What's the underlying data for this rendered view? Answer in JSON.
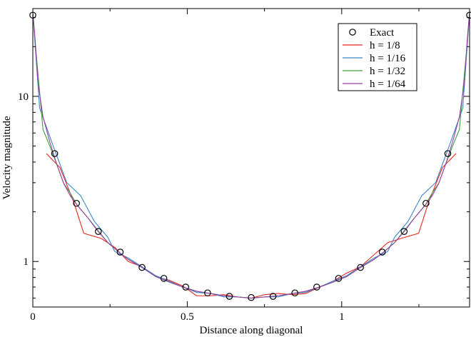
{
  "chart_data": {
    "type": "line",
    "xlabel": "Distance along diagonal",
    "ylabel": "Velocity magnitude",
    "xlim": [
      0,
      1.414
    ],
    "ylim": [
      0.53,
      34
    ],
    "yscale": "log",
    "grid": false,
    "legend_position": "top-right",
    "x_ticks": [
      {
        "value": 0,
        "label": "0"
      },
      {
        "value": 0.5,
        "label": "0.5"
      },
      {
        "value": 1,
        "label": "1"
      }
    ],
    "y_ticks": [
      {
        "value": 1,
        "label": "1"
      },
      {
        "value": 10,
        "label": "10"
      }
    ],
    "series": [
      {
        "name": "Exact",
        "style": "markers",
        "marker": "circle",
        "color": "#000000",
        "points": [
          [
            0.0,
            31
          ],
          [
            0.0707,
            4.5
          ],
          [
            0.1414,
            2.25
          ],
          [
            0.2121,
            1.52
          ],
          [
            0.2828,
            1.14
          ],
          [
            0.3536,
            0.92
          ],
          [
            0.4243,
            0.79
          ],
          [
            0.495,
            0.7
          ],
          [
            0.5657,
            0.645
          ],
          [
            0.6364,
            0.615
          ],
          [
            0.7071,
            0.605
          ],
          [
            0.7778,
            0.615
          ],
          [
            0.8485,
            0.645
          ],
          [
            0.9192,
            0.7
          ],
          [
            0.9899,
            0.79
          ],
          [
            1.0607,
            0.92
          ],
          [
            1.1314,
            1.14
          ],
          [
            1.2021,
            1.52
          ],
          [
            1.2728,
            2.25
          ],
          [
            1.3435,
            4.5
          ],
          [
            1.4142,
            31
          ]
        ]
      },
      {
        "name": "h = 1/8",
        "style": "line",
        "color": "#e8281e",
        "points": [
          [
            0.044,
            4.5
          ],
          [
            0.088,
            3.7
          ],
          [
            0.132,
            2.3
          ],
          [
            0.165,
            1.48
          ],
          [
            0.221,
            1.38
          ],
          [
            0.265,
            1.22
          ],
          [
            0.309,
            1.0
          ],
          [
            0.353,
            0.93
          ],
          [
            0.398,
            0.81
          ],
          [
            0.442,
            0.77
          ],
          [
            0.486,
            0.71
          ],
          [
            0.53,
            0.62
          ],
          [
            0.575,
            0.62
          ],
          [
            0.619,
            0.63
          ],
          [
            0.663,
            0.61
          ],
          [
            0.707,
            0.6
          ],
          [
            0.751,
            0.63
          ],
          [
            0.795,
            0.64
          ],
          [
            0.84,
            0.63
          ],
          [
            0.884,
            0.64
          ],
          [
            0.928,
            0.7
          ],
          [
            0.972,
            0.76
          ],
          [
            1.016,
            0.85
          ],
          [
            1.061,
            0.93
          ],
          [
            1.105,
            1.1
          ],
          [
            1.149,
            1.3
          ],
          [
            1.193,
            1.38
          ],
          [
            1.249,
            1.48
          ],
          [
            1.282,
            2.3
          ],
          [
            1.326,
            3.7
          ],
          [
            1.37,
            4.5
          ]
        ]
      },
      {
        "name": "h = 1/16",
        "style": "line",
        "color": "#3a85c7",
        "points": [
          [
            0.0,
            32
          ],
          [
            0.022,
            8.5
          ],
          [
            0.066,
            5.0
          ],
          [
            0.11,
            3.0
          ],
          [
            0.155,
            2.5
          ],
          [
            0.199,
            1.75
          ],
          [
            0.243,
            1.4
          ],
          [
            0.265,
            1.15
          ],
          [
            0.309,
            1.05
          ],
          [
            0.353,
            0.93
          ],
          [
            0.398,
            0.82
          ],
          [
            0.442,
            0.76
          ],
          [
            0.486,
            0.7
          ],
          [
            0.53,
            0.65
          ],
          [
            0.575,
            0.64
          ],
          [
            0.619,
            0.61
          ],
          [
            0.663,
            0.61
          ],
          [
            0.707,
            0.6
          ],
          [
            0.751,
            0.61
          ],
          [
            0.795,
            0.61
          ],
          [
            0.84,
            0.64
          ],
          [
            0.884,
            0.65
          ],
          [
            0.928,
            0.7
          ],
          [
            0.972,
            0.76
          ],
          [
            1.016,
            0.82
          ],
          [
            1.061,
            0.93
          ],
          [
            1.105,
            1.05
          ],
          [
            1.149,
            1.15
          ],
          [
            1.171,
            1.4
          ],
          [
            1.215,
            1.75
          ],
          [
            1.259,
            2.5
          ],
          [
            1.304,
            3.0
          ],
          [
            1.348,
            5.0
          ],
          [
            1.392,
            8.5
          ],
          [
            1.414,
            32
          ]
        ]
      },
      {
        "name": "h = 1/32",
        "style": "line",
        "color": "#3ca03c",
        "points": [
          [
            0.0,
            32
          ],
          [
            0.011,
            18
          ],
          [
            0.033,
            6.3
          ],
          [
            0.055,
            5.0
          ],
          [
            0.077,
            3.9
          ],
          [
            0.099,
            3.0
          ],
          [
            0.121,
            2.6
          ],
          [
            0.143,
            2.2
          ],
          [
            0.177,
            1.85
          ],
          [
            0.21,
            1.55
          ],
          [
            0.243,
            1.3
          ],
          [
            0.276,
            1.15
          ],
          [
            0.309,
            1.03
          ],
          [
            0.353,
            0.92
          ],
          [
            0.398,
            0.81
          ],
          [
            0.442,
            0.75
          ],
          [
            0.486,
            0.7
          ],
          [
            0.53,
            0.66
          ],
          [
            0.575,
            0.64
          ],
          [
            0.619,
            0.62
          ],
          [
            0.663,
            0.61
          ],
          [
            0.707,
            0.6
          ],
          [
            0.751,
            0.61
          ],
          [
            0.795,
            0.62
          ],
          [
            0.84,
            0.64
          ],
          [
            0.884,
            0.66
          ],
          [
            0.928,
            0.7
          ],
          [
            0.972,
            0.75
          ],
          [
            1.016,
            0.81
          ],
          [
            1.061,
            0.92
          ],
          [
            1.105,
            1.03
          ],
          [
            1.138,
            1.15
          ],
          [
            1.171,
            1.3
          ],
          [
            1.204,
            1.55
          ],
          [
            1.237,
            1.85
          ],
          [
            1.271,
            2.2
          ],
          [
            1.293,
            2.6
          ],
          [
            1.315,
            3.0
          ],
          [
            1.337,
            3.9
          ],
          [
            1.359,
            5.0
          ],
          [
            1.381,
            6.3
          ],
          [
            1.403,
            18
          ],
          [
            1.414,
            32
          ]
        ]
      },
      {
        "name": "h = 1/64",
        "style": "line",
        "color": "#9a3fa8",
        "points": [
          [
            0.0,
            32
          ],
          [
            0.006,
            24
          ],
          [
            0.017,
            12
          ],
          [
            0.033,
            7.5
          ],
          [
            0.055,
            5.3
          ],
          [
            0.077,
            3.9
          ],
          [
            0.099,
            3.0
          ],
          [
            0.121,
            2.5
          ],
          [
            0.143,
            2.2
          ],
          [
            0.177,
            1.85
          ],
          [
            0.21,
            1.53
          ],
          [
            0.243,
            1.3
          ],
          [
            0.276,
            1.15
          ],
          [
            0.309,
            1.03
          ],
          [
            0.353,
            0.92
          ],
          [
            0.398,
            0.81
          ],
          [
            0.442,
            0.75
          ],
          [
            0.486,
            0.7
          ],
          [
            0.53,
            0.66
          ],
          [
            0.575,
            0.64
          ],
          [
            0.619,
            0.62
          ],
          [
            0.663,
            0.61
          ],
          [
            0.707,
            0.6
          ],
          [
            0.751,
            0.61
          ],
          [
            0.795,
            0.62
          ],
          [
            0.84,
            0.64
          ],
          [
            0.884,
            0.66
          ],
          [
            0.928,
            0.7
          ],
          [
            0.972,
            0.75
          ],
          [
            1.016,
            0.81
          ],
          [
            1.061,
            0.92
          ],
          [
            1.105,
            1.03
          ],
          [
            1.138,
            1.15
          ],
          [
            1.171,
            1.3
          ],
          [
            1.204,
            1.53
          ],
          [
            1.237,
            1.85
          ],
          [
            1.271,
            2.2
          ],
          [
            1.293,
            2.5
          ],
          [
            1.315,
            3.0
          ],
          [
            1.337,
            3.9
          ],
          [
            1.359,
            5.3
          ],
          [
            1.381,
            7.5
          ],
          [
            1.397,
            12
          ],
          [
            1.408,
            24
          ],
          [
            1.414,
            32
          ]
        ]
      }
    ]
  }
}
